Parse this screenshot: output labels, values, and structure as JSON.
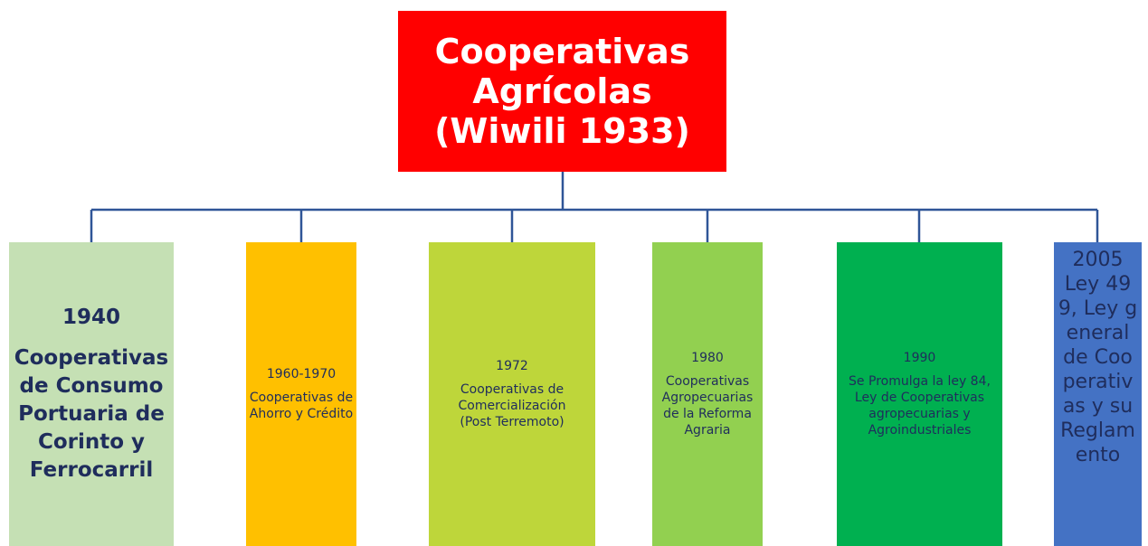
{
  "root": {
    "label": "Cooperativas Agrícolas  (Wiwili 1933)"
  },
  "nodes": [
    {
      "date": "1940",
      "label": "Cooperativas de Consumo Portuaria de Corinto y Ferrocarril"
    },
    {
      "date": "1960-1970",
      "label": "Cooperativas de Ahorro y Crédito"
    },
    {
      "date": "1972",
      "label": "Cooperativas de Comercialización (Post Terremoto)"
    },
    {
      "date": "1980",
      "label": "Cooperativas Agropecuarias de la Reforma Agraria"
    },
    {
      "date": "1990",
      "label": "Se Promulga la ley 84, Ley de Cooperativas agropecuarias y Agroindustriales"
    },
    {
      "date": "2005",
      "label": "Ley 499, Ley general de Cooperativas y su Reglamento"
    }
  ]
}
